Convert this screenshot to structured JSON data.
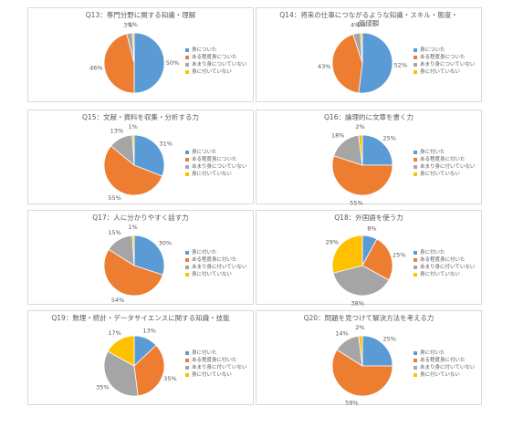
{
  "colors": {
    "c1": "#5b9bd5",
    "c2": "#ed7d31",
    "c3": "#a5a5a5",
    "c4": "#ffc000",
    "label": "#595959",
    "border": "#d9d9d9"
  },
  "chart_data": [
    {
      "type": "pie",
      "title": "Q13：専門分野に関する知識・理解",
      "categories": [
        "身についた",
        "ある程度身についた",
        "あまり身についていない",
        "身に付いていない"
      ],
      "values": [
        50,
        46,
        3,
        1
      ],
      "labels": [
        "50%",
        "46%",
        "3%",
        "1%"
      ]
    },
    {
      "type": "pie",
      "title": "Q14：将来の仕事につながるような知識・スキル・態度・\n価値観",
      "categories": [
        "身についた",
        "ある程度身についた",
        "あまり身についていない",
        "身に付いていない"
      ],
      "values": [
        52,
        43,
        4,
        1
      ],
      "labels": [
        "52%",
        "43%",
        "4%",
        "1%"
      ]
    },
    {
      "type": "pie",
      "title": "Q15：文献・資料を収集・分析する力",
      "categories": [
        "身についた",
        "ある程度身についた",
        "あまり身についていない",
        "身に付いていない"
      ],
      "values": [
        31,
        55,
        13,
        1
      ],
      "labels": [
        "31%",
        "55%",
        "13%",
        "1%"
      ]
    },
    {
      "type": "pie",
      "title": "Q16：論理的に文章を書く力",
      "categories": [
        "身に付いた",
        "ある程度身に付いた",
        "あまり身に付いていない",
        "身に付いていない"
      ],
      "values": [
        25,
        55,
        18,
        2
      ],
      "labels": [
        "25%",
        "55%",
        "18%",
        "2%"
      ]
    },
    {
      "type": "pie",
      "title": "Q17：人に分かりやすく話す力",
      "categories": [
        "身に付いた",
        "ある程度身に付いた",
        "あまり身に付いていない",
        "身に付いていない"
      ],
      "values": [
        30,
        54,
        15,
        1
      ],
      "labels": [
        "30%",
        "54%",
        "15%",
        "1%"
      ]
    },
    {
      "type": "pie",
      "title": "Q18：外国語を使う力",
      "categories": [
        "身に付いた",
        "ある程度身に付いた",
        "あまり身に付いていない",
        "身に付いていない"
      ],
      "values": [
        8,
        25,
        38,
        29
      ],
      "labels": [
        "8%",
        "25%",
        "38%",
        "29%"
      ]
    },
    {
      "type": "pie",
      "title": "Q19：数理・統計・データサイエンスに関する知識・技能",
      "categories": [
        "身に付いた",
        "ある程度身に付いた",
        "あまり身に付いていない",
        "身に付いていない"
      ],
      "values": [
        13,
        35,
        35,
        17
      ],
      "labels": [
        "13%",
        "35%",
        "35%",
        "17%"
      ]
    },
    {
      "type": "pie",
      "title": "Q20：問題を見つけて解決方法を考える力",
      "categories": [
        "身に付いた",
        "ある程度身に付いた",
        "あまり身に付いていない",
        "身に付いていない"
      ],
      "values": [
        25,
        59,
        14,
        2
      ],
      "labels": [
        "25%",
        "59%",
        "14%",
        "2%"
      ]
    }
  ]
}
